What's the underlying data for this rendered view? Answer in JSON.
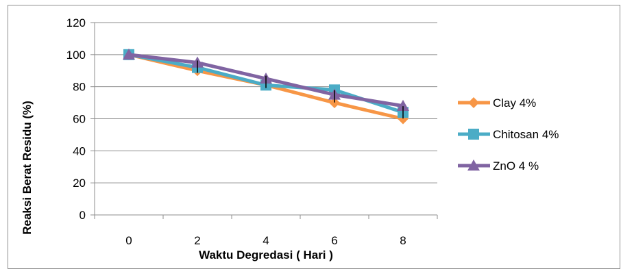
{
  "chart_data": {
    "type": "line",
    "title": "",
    "xlabel": "Waktu Degredasi ( Hari )",
    "ylabel": "Reaksi Berat Residu (%)",
    "x": [
      0,
      2,
      4,
      6,
      8
    ],
    "ylim": [
      0,
      120
    ],
    "ytick_step": 20,
    "grid": true,
    "legend_position": "right",
    "series": [
      {
        "name": "Clay 4%",
        "values": [
          100,
          90,
          81,
          70,
          60
        ],
        "color": "#F79646",
        "marker": "diamond"
      },
      {
        "name": "Chitosan 4%",
        "values": [
          100,
          92,
          81,
          78,
          64
        ],
        "color": "#4BACC6",
        "marker": "square"
      },
      {
        "name": "ZnO 4 %",
        "values": [
          100,
          95,
          85,
          75,
          68
        ],
        "color": "#8064A2",
        "marker": "triangle"
      }
    ]
  }
}
